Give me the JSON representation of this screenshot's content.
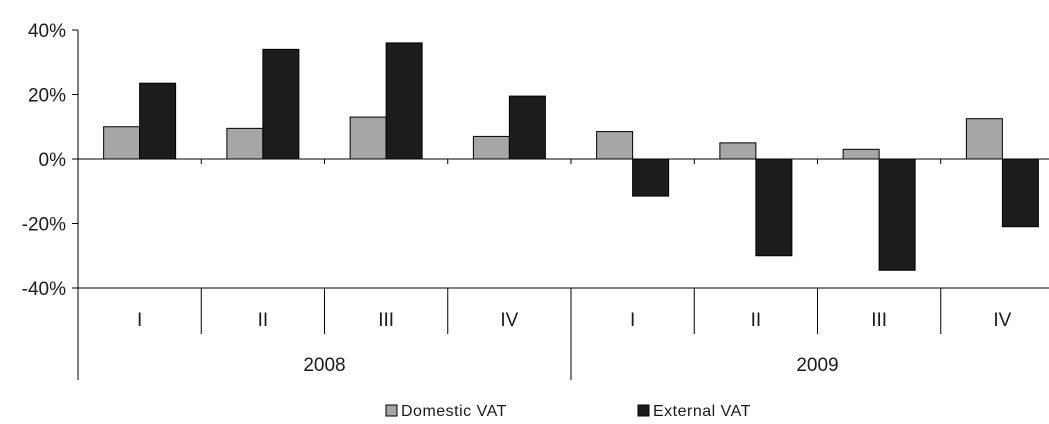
{
  "chart_data": {
    "type": "bar",
    "title": "",
    "xlabel": "",
    "ylabel": "",
    "ylim": [
      -40,
      40
    ],
    "y_ticks": [
      -40,
      -20,
      0,
      20,
      40
    ],
    "y_tick_labels": [
      "-40%",
      "-20%",
      "0%",
      "20%",
      "40%"
    ],
    "grid": false,
    "legend_position": "bottom",
    "categories": [
      "I",
      "II",
      "III",
      "IV",
      "I",
      "II",
      "III",
      "IV"
    ],
    "groups": [
      {
        "label": "2008",
        "categories": [
          "I",
          "II",
          "III",
          "IV"
        ]
      },
      {
        "label": "2009",
        "categories": [
          "I",
          "II",
          "III",
          "IV"
        ]
      }
    ],
    "series": [
      {
        "name": "Domestic VAT",
        "color": "#a6a6a6",
        "values": [
          10,
          9.5,
          13,
          7,
          8.5,
          5,
          3,
          12.5
        ]
      },
      {
        "name": "External VAT",
        "color": "#1c1c1c",
        "values": [
          23.5,
          34,
          36,
          19.5,
          -11.5,
          -30,
          -34.5,
          -21
        ]
      }
    ]
  }
}
